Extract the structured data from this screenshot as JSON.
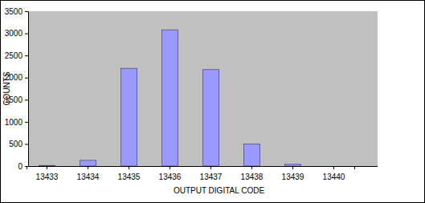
{
  "chart_data": {
    "type": "bar",
    "x_label": "OUTPUT DIGITAL CODE",
    "y_label": "COUNTS",
    "categories": [
      "13433",
      "13434",
      "13435",
      "13436",
      "13437",
      "13438",
      "13439",
      "13440"
    ],
    "values": [
      15,
      130,
      2210,
      3080,
      2180,
      500,
      40,
      0
    ],
    "color": "#9999ff",
    "ylim": [
      0,
      3500
    ],
    "yticks": [
      0,
      500,
      1000,
      1500,
      2000,
      2500,
      3000,
      3500
    ],
    "grid": false
  }
}
